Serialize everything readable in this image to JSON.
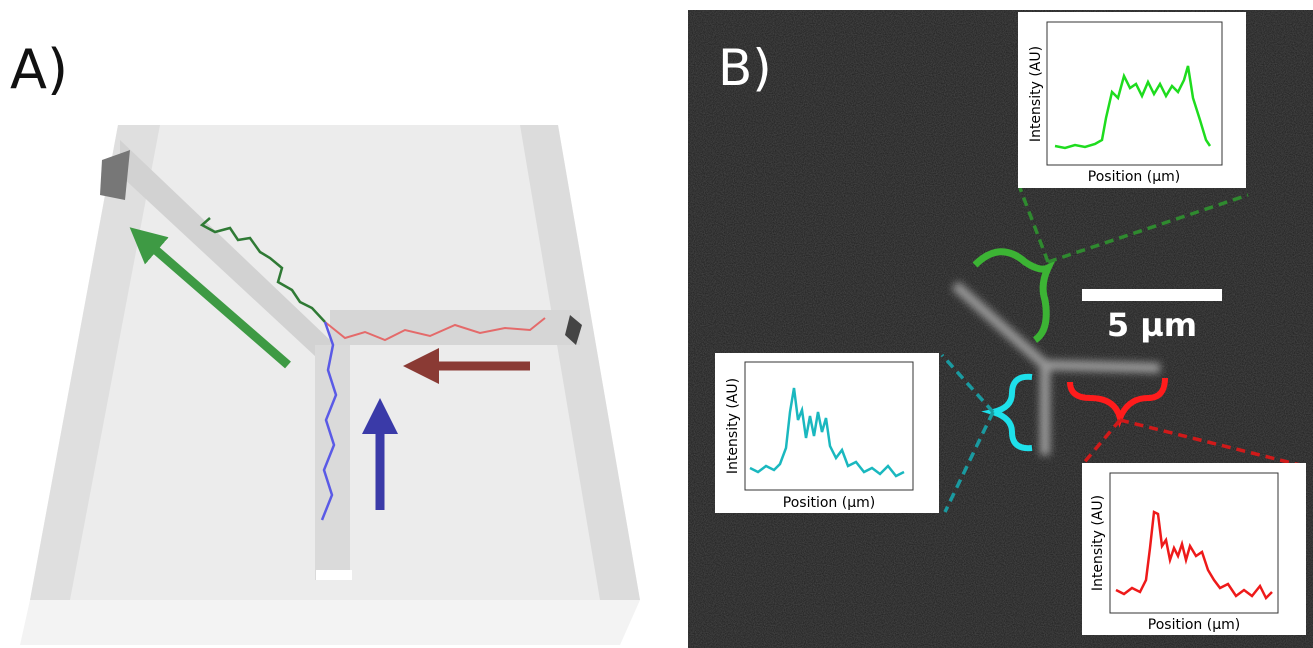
{
  "panels": [
    {
      "label": "A)"
    },
    {
      "label": "B)",
      "scale_bar": "5 µm",
      "insets": [
        {
          "y_label": "Intensity (AU)",
          "x_label": "Position (µm)"
        },
        {
          "y_label": "Intensity (AU)",
          "x_label": "Position (µm)"
        },
        {
          "y_label": "Intensity (AU)",
          "x_label": "Position (µm)"
        }
      ]
    }
  ]
}
